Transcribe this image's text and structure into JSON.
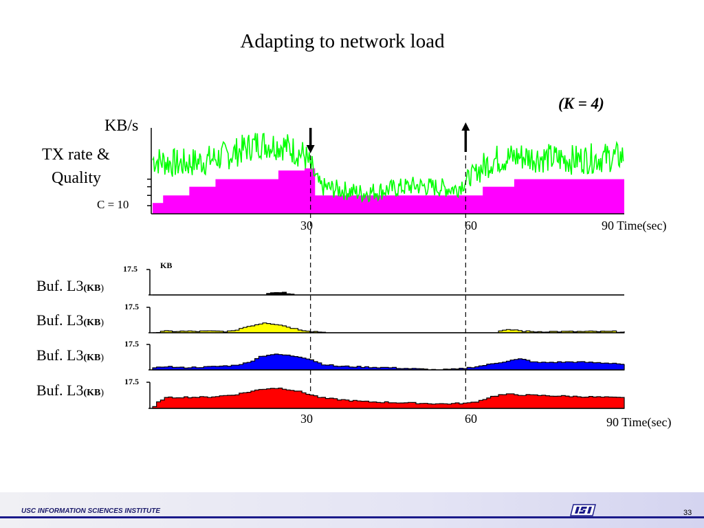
{
  "title": "Adapting to network load",
  "k_note": "(K = 4)",
  "top_plot": {
    "y_unit": "KB/s",
    "y_label_line1": "TX rate &",
    "y_label_line2": "Quality",
    "capacity_label": "C = 10",
    "x_ticks": [
      "30",
      "60"
    ],
    "x_last_tick": "90 Time(sec)",
    "events": [
      {
        "time": 30,
        "direction": "down"
      },
      {
        "time": 60,
        "direction": "up"
      }
    ]
  },
  "buffer_plots": {
    "tick_label": "17.5",
    "unit_label": "KB",
    "labels": [
      {
        "main": "Buf. L3",
        "unit": "(KB",
        "close": ")"
      },
      {
        "main": "Buf. L3",
        "unit": "(KB",
        "close": ")"
      },
      {
        "main": "Buf. L3",
        "unit": "(KB",
        "close": ")"
      },
      {
        "main": "Buf. L3",
        "unit": "(KB",
        "close": ")"
      }
    ],
    "x_ticks": [
      "30",
      "60"
    ],
    "x_last_tick": "90 Time(sec)"
  },
  "chart_data": [
    {
      "type": "area",
      "subtype": "step",
      "description_series": "quality layers",
      "xlim": [
        0,
        90
      ],
      "ylabel": "KB/s",
      "series": [
        {
          "color": "#ff00ff",
          "x": [
            0,
            2,
            7,
            12,
            21,
            24,
            29,
            31,
            60,
            63,
            69,
            90
          ],
          "values": [
            1,
            1.7,
            2.5,
            3.2,
            3.2,
            4.0,
            4.2,
            1.7,
            1.7,
            2.5,
            3.2,
            3.2
          ]
        },
        {
          "color": "#00ff00",
          "x": [
            0,
            5,
            10,
            15,
            20,
            25,
            29,
            32,
            40,
            50,
            58,
            61,
            65,
            70,
            80,
            90
          ],
          "values": [
            5.0,
            4.6,
            4.9,
            5.5,
            6.5,
            6.3,
            5.4,
            2.5,
            1.9,
            2.6,
            2.3,
            3.6,
            5.0,
            5.3,
            5.0,
            5.3
          ]
        }
      ]
    },
    {
      "type": "area",
      "xlim": [
        0,
        90
      ],
      "ylim": [
        0,
        17.5
      ],
      "color": "#000000",
      "x": [
        0,
        21,
        22,
        23,
        24,
        25,
        26,
        27,
        90
      ],
      "values": [
        0,
        0,
        1.5,
        2.0,
        1.2,
        1.5,
        1.0,
        0,
        0
      ]
    },
    {
      "type": "area",
      "xlim": [
        0,
        90
      ],
      "ylim": [
        0,
        17.5
      ],
      "color": "#ffff00",
      "x": [
        0,
        2,
        15,
        16,
        18,
        20,
        21,
        22,
        24,
        26,
        28,
        30,
        32,
        33,
        65,
        66,
        68,
        69,
        70,
        72,
        90
      ],
      "values": [
        0,
        1.0,
        1.0,
        2.5,
        4.5,
        6.0,
        7.0,
        6.5,
        5.5,
        3.5,
        2.0,
        1.0,
        0.5,
        0,
        0,
        1.2,
        2.0,
        2.0,
        1.2,
        0.8,
        0.8
      ]
    },
    {
      "type": "area",
      "xlim": [
        0,
        90
      ],
      "ylim": [
        0,
        17.5
      ],
      "color": "#0000ff",
      "x": [
        0,
        2,
        5,
        10,
        15,
        18,
        20,
        22,
        24,
        28,
        30,
        32,
        35,
        40,
        45,
        48,
        54,
        58,
        62,
        65,
        68,
        70,
        73,
        80,
        88,
        90
      ],
      "values": [
        1.0,
        2.5,
        1.5,
        2.0,
        3.0,
        5.0,
        9.0,
        10.5,
        10.5,
        9.0,
        7.0,
        4.0,
        2.5,
        2.0,
        1.5,
        1.0,
        0,
        0.5,
        2.5,
        4.5,
        6.5,
        7.5,
        5.0,
        5.5,
        4.5,
        3.5
      ]
    },
    {
      "type": "area",
      "xlim": [
        0,
        90
      ],
      "ylim": [
        0,
        17.5
      ],
      "color": "#ff0000",
      "x": [
        0,
        1,
        2,
        5,
        10,
        15,
        18,
        20,
        22,
        24,
        26,
        28,
        30,
        32,
        35,
        40,
        45,
        50,
        55,
        60,
        62,
        64,
        66,
        68,
        70,
        75,
        80,
        85,
        90
      ],
      "values": [
        1.0,
        5.0,
        7.0,
        7.5,
        7.5,
        9.0,
        11.0,
        12.5,
        13.5,
        13.5,
        12.5,
        11.0,
        9.0,
        7.0,
        6.0,
        4.5,
        4.0,
        3.5,
        3.0,
        3.5,
        5.0,
        7.5,
        9.0,
        9.5,
        9.0,
        8.5,
        8.0,
        7.5,
        7.0
      ]
    }
  ],
  "footer": {
    "institute": "USC INFORMATION SCIENCES INSTITUTE",
    "page_number": "33"
  },
  "colors": {
    "quality_fill": "#ff00ff",
    "tx_rate": "#00ff00",
    "buffer_L0": "#000000",
    "buffer_L1": "#ffff00",
    "buffer_L2": "#0000ff",
    "buffer_L3": "#ff0000",
    "footer_rule": "#1a1a8a"
  }
}
